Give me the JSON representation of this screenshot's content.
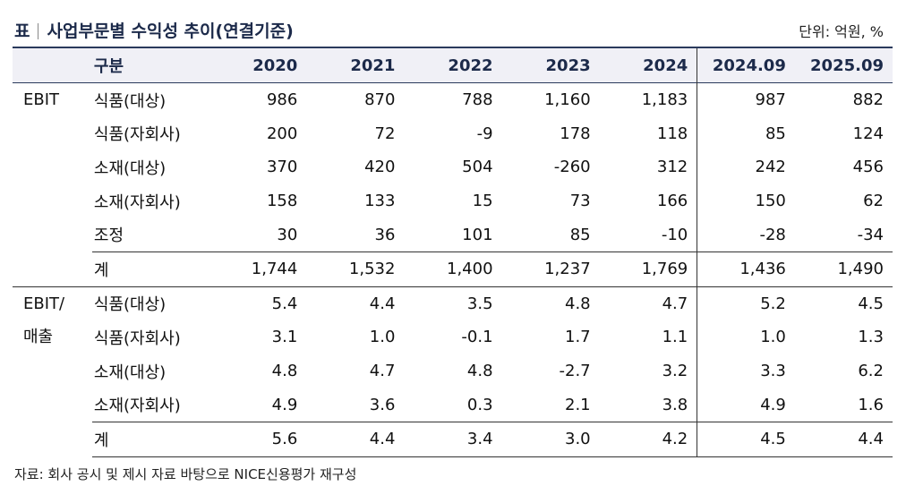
{
  "title": {
    "label": "표",
    "text": "사업부문별 수익성 추이(연결기준)"
  },
  "unit": "단위: 억원, %",
  "header": {
    "category": "구분",
    "years": [
      "2020",
      "2021",
      "2022",
      "2023",
      "2024",
      "2024.09",
      "2025.09"
    ]
  },
  "sections": [
    {
      "group_line1": "EBIT",
      "group_line2": "",
      "rows": [
        {
          "label": "식품(대상)",
          "values": [
            "986",
            "870",
            "788",
            "1,160",
            "1,183",
            "987",
            "882"
          ]
        },
        {
          "label": "식품(자회사)",
          "values": [
            "200",
            "72",
            "-9",
            "178",
            "118",
            "85",
            "124"
          ]
        },
        {
          "label": "소재(대상)",
          "values": [
            "370",
            "420",
            "504",
            "-260",
            "312",
            "242",
            "456"
          ]
        },
        {
          "label": "소재(자회사)",
          "values": [
            "158",
            "133",
            "15",
            "73",
            "166",
            "150",
            "62"
          ]
        },
        {
          "label": "조정",
          "values": [
            "30",
            "36",
            "101",
            "85",
            "-10",
            "-28",
            "-34"
          ]
        },
        {
          "label": "계",
          "values": [
            "1,744",
            "1,532",
            "1,400",
            "1,237",
            "1,769",
            "1,436",
            "1,490"
          ]
        }
      ]
    },
    {
      "group_line1": "EBIT/",
      "group_line2": "매출",
      "rows": [
        {
          "label": "식품(대상)",
          "values": [
            "5.4",
            "4.4",
            "3.5",
            "4.8",
            "4.7",
            "5.2",
            "4.5"
          ]
        },
        {
          "label": "식품(자회사)",
          "values": [
            "3.1",
            "1.0",
            "-0.1",
            "1.7",
            "1.1",
            "1.0",
            "1.3"
          ]
        },
        {
          "label": "소재(대상)",
          "values": [
            "4.8",
            "4.7",
            "4.8",
            "-2.7",
            "3.2",
            "3.3",
            "6.2"
          ]
        },
        {
          "label": "소재(자회사)",
          "values": [
            "4.9",
            "3.6",
            "0.3",
            "2.1",
            "3.8",
            "4.9",
            "1.6"
          ]
        },
        {
          "label": "계",
          "values": [
            "5.6",
            "4.4",
            "3.4",
            "3.0",
            "4.2",
            "4.5",
            "4.4"
          ]
        }
      ]
    }
  ],
  "source": "자료: 회사 공시 및 제시 자료 바탕으로 NICE신용평가 재구성"
}
